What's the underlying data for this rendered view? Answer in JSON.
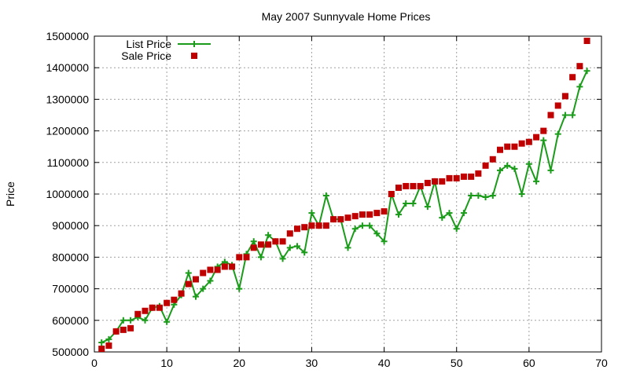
{
  "chart_data": {
    "type": "line",
    "title": "May 2007 Sunnyvale Home Prices",
    "xlabel": "",
    "ylabel": "Price",
    "xlim": [
      0,
      70
    ],
    "ylim": [
      500000,
      1500000
    ],
    "xticks": [
      0,
      10,
      20,
      30,
      40,
      50,
      60,
      70
    ],
    "yticks": [
      500000,
      600000,
      700000,
      800000,
      900000,
      1000000,
      1100000,
      1200000,
      1300000,
      1400000,
      1500000
    ],
    "grid": true,
    "legend_position": "top-left",
    "series": [
      {
        "name": "List Price",
        "style": "line+cross",
        "color": "#1a9c1a",
        "x": [
          1,
          2,
          3,
          4,
          5,
          6,
          7,
          8,
          9,
          10,
          11,
          12,
          13,
          14,
          15,
          16,
          17,
          18,
          19,
          20,
          21,
          22,
          23,
          24,
          25,
          26,
          27,
          28,
          29,
          30,
          31,
          32,
          33,
          34,
          35,
          36,
          37,
          38,
          39,
          40,
          41,
          42,
          43,
          44,
          45,
          46,
          47,
          48,
          49,
          50,
          51,
          52,
          53,
          54,
          55,
          56,
          57,
          58,
          59,
          60,
          61,
          62,
          63,
          64,
          65,
          66,
          67,
          68
        ],
        "values": [
          530000,
          540000,
          565000,
          600000,
          600000,
          610000,
          600000,
          640000,
          645000,
          595000,
          650000,
          680000,
          750000,
          675000,
          700000,
          725000,
          770000,
          785000,
          775000,
          700000,
          810000,
          850000,
          800000,
          870000,
          850000,
          795000,
          830000,
          835000,
          815000,
          940000,
          900000,
          995000,
          920000,
          920000,
          830000,
          890000,
          900000,
          900000,
          875000,
          850000,
          1000000,
          935000,
          970000,
          970000,
          1025000,
          960000,
          1040000,
          925000,
          940000,
          890000,
          940000,
          995000,
          995000,
          990000,
          995000,
          1075000,
          1090000,
          1080000,
          1000000,
          1095000,
          1040000,
          1170000,
          1075000,
          1190000,
          1250000,
          1250000,
          1340000,
          1390000
        ]
      },
      {
        "name": "Sale Price",
        "style": "square-markers",
        "color": "#c00000",
        "x": [
          1,
          2,
          3,
          4,
          5,
          6,
          7,
          8,
          9,
          10,
          11,
          12,
          13,
          14,
          15,
          16,
          17,
          18,
          19,
          20,
          21,
          22,
          23,
          24,
          25,
          26,
          27,
          28,
          29,
          30,
          31,
          32,
          33,
          34,
          35,
          36,
          37,
          38,
          39,
          40,
          41,
          42,
          43,
          44,
          45,
          46,
          47,
          48,
          49,
          50,
          51,
          52,
          53,
          54,
          55,
          56,
          57,
          58,
          59,
          60,
          61,
          62,
          63,
          64,
          65,
          66,
          67,
          68
        ],
        "values": [
          510000,
          520000,
          565000,
          570000,
          575000,
          620000,
          630000,
          640000,
          640000,
          655000,
          665000,
          685000,
          715000,
          730000,
          750000,
          760000,
          760000,
          770000,
          770000,
          800000,
          800000,
          830000,
          840000,
          840000,
          850000,
          850000,
          875000,
          890000,
          895000,
          900000,
          900000,
          900000,
          920000,
          920000,
          925000,
          930000,
          935000,
          935000,
          940000,
          945000,
          1000000,
          1020000,
          1025000,
          1025000,
          1025000,
          1035000,
          1040000,
          1040000,
          1050000,
          1050000,
          1055000,
          1055000,
          1065000,
          1090000,
          1110000,
          1140000,
          1150000,
          1150000,
          1160000,
          1165000,
          1180000,
          1200000,
          1250000,
          1280000,
          1310000,
          1370000,
          1405000,
          1485000
        ]
      }
    ]
  }
}
